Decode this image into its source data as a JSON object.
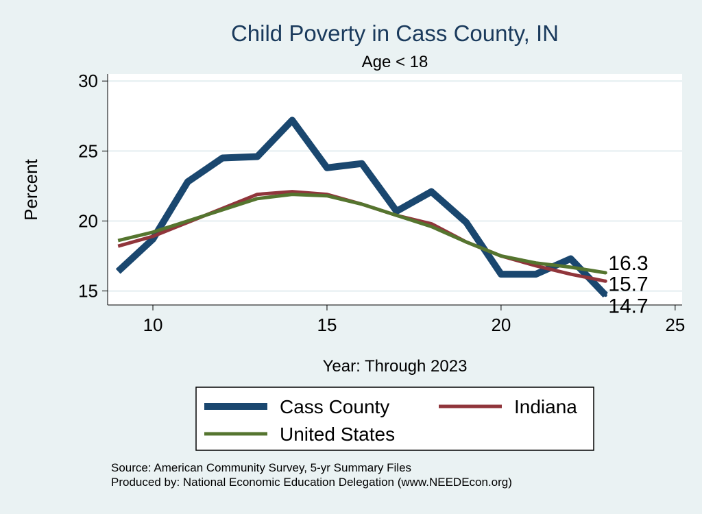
{
  "chart_data": {
    "type": "line",
    "title": "Child Poverty in Cass County, IN",
    "subtitle": "Age < 18",
    "xlabel": "Year: Through 2023",
    "ylabel": "Percent",
    "xlim": [
      8.7,
      25.2
    ],
    "ylim": [
      14.0,
      30.5
    ],
    "xticks": [
      10,
      15,
      20,
      25
    ],
    "yticks": [
      15,
      20,
      25,
      30
    ],
    "grid": "horizontal",
    "legend_position": "bottom",
    "x": [
      9,
      10,
      11,
      12,
      13,
      14,
      15,
      16,
      17,
      18,
      19,
      20,
      21,
      22,
      23
    ],
    "series": [
      {
        "name": "Cass County",
        "color": "#1a476f",
        "values": [
          16.4,
          18.7,
          22.8,
          24.5,
          24.6,
          27.2,
          23.8,
          24.1,
          20.7,
          22.1,
          19.9,
          16.2,
          16.2,
          17.3,
          14.7
        ],
        "end_label": "14.7"
      },
      {
        "name": "Indiana",
        "color": "#90353b",
        "values": [
          18.2,
          18.9,
          19.9,
          20.9,
          21.9,
          22.1,
          21.9,
          21.2,
          20.4,
          19.8,
          18.5,
          17.5,
          16.8,
          16.2,
          15.7
        ],
        "end_label": "15.7"
      },
      {
        "name": "United States",
        "color": "#55752f",
        "values": [
          18.6,
          19.2,
          20.0,
          20.8,
          21.6,
          21.9,
          21.8,
          21.2,
          20.4,
          19.6,
          18.5,
          17.5,
          17.0,
          16.7,
          16.3
        ],
        "end_label": "16.3"
      }
    ],
    "notes": [
      "Source: American Community Survey, 5-yr Summary Files",
      "Produced by: National Economic Education Delegation (www.NEEDEcon.org)"
    ]
  }
}
